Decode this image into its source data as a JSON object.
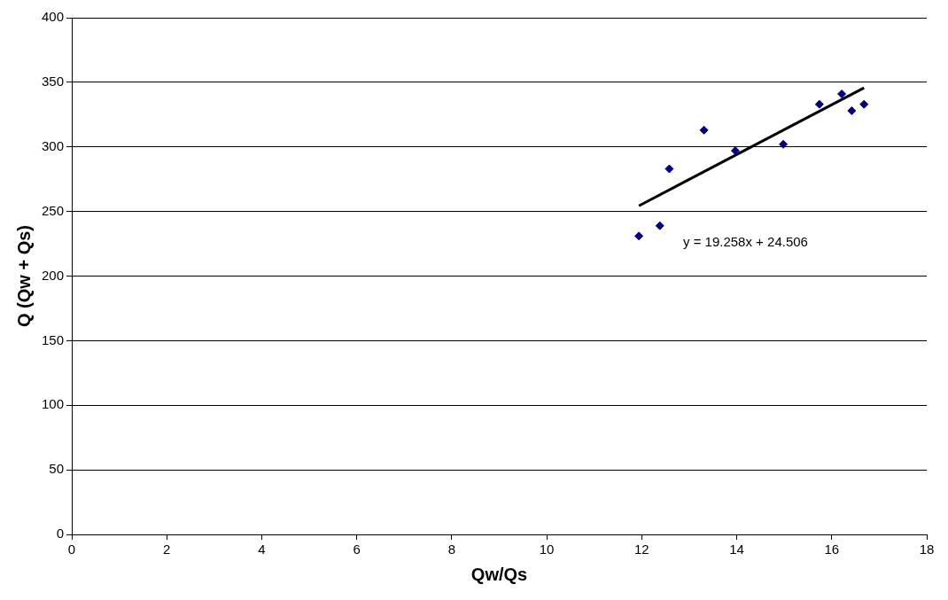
{
  "chart_data": {
    "type": "scatter",
    "xlabel": "Qw/Qs",
    "ylabel": "Q (Qw + Qs)",
    "xlim": [
      0,
      18
    ],
    "xticks": [
      0,
      2,
      4,
      6,
      8,
      10,
      12,
      14,
      16,
      18
    ],
    "ylim": [
      0,
      400
    ],
    "yticks": [
      0,
      50,
      100,
      150,
      200,
      250,
      300,
      350,
      400
    ],
    "grid": "y",
    "marker": "diamond",
    "series": [
      {
        "color": "#000080",
        "x": [
          11.94,
          12.38,
          12.58,
          13.31,
          13.97,
          14.98,
          15.74,
          16.21,
          16.42,
          16.68
        ],
        "values": [
          231,
          239,
          283,
          313,
          297,
          302,
          333,
          341,
          328,
          333
        ]
      },
      {
        "type": "line",
        "color": "#000000",
        "marker": "none",
        "x": [
          11.94,
          16.68
        ],
        "values": [
          254.4,
          345.7
        ]
      }
    ],
    "annotations": [
      "y = 19.258x + 24.506"
    ]
  }
}
